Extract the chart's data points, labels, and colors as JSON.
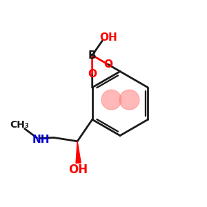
{
  "bg_color": "#ffffff",
  "bond_color": "#1a1a1a",
  "O_color": "#ff0000",
  "N_color": "#0000cc",
  "B_color": "#1a1a1a",
  "ring_highlight_color": "#ff8080",
  "ring_highlight_alpha": 0.55,
  "figsize": [
    3.0,
    3.0
  ],
  "dpi": 100,
  "xlim": [
    0,
    10
  ],
  "ylim": [
    0,
    10
  ]
}
